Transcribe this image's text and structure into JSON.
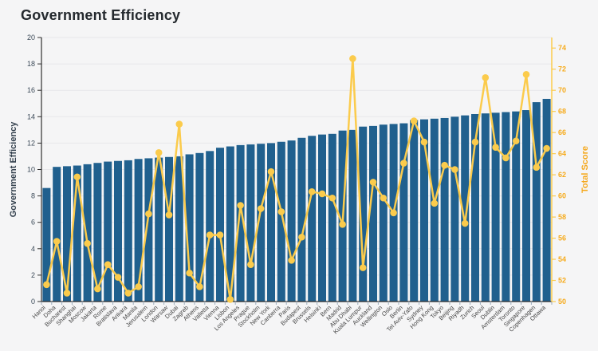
{
  "title": "Government Efficiency",
  "colors": {
    "background": "#f5f5f6",
    "bar": "#20608e",
    "line": "#fbcb4c",
    "marker": "#fbcb4c",
    "right_axis_line": "#fbcb4c",
    "right_axis_text": "#f6ab1c",
    "right_axis_title": "#f5a81c",
    "left_axis_line": "#2e2e2e",
    "left_axis_text": "#3d4b59",
    "left_axis_title": "#33404d",
    "x_tick": "#9cacbc",
    "x_label": "#474747",
    "grid": "#e7e7ea",
    "title_color": "#24292e"
  },
  "chart_data": {
    "type": "bar",
    "title": "Government Efficiency",
    "legend": false,
    "grid": "horizontal",
    "x_label_rotation": 45,
    "categories": [
      "Hanoi",
      "Doha",
      "Bucharest",
      "Shanghai",
      "Moscow",
      "Jakarta",
      "Rome",
      "Bratislava",
      "Ankara",
      "Manila",
      "Jerusalem",
      "London",
      "Warsaw",
      "Dubai",
      "Zagreb",
      "Athens",
      "Valletta",
      "Vienna",
      "Lisbon",
      "Los Angeles",
      "Prague",
      "Stockholm",
      "New York",
      "Canberra",
      "Paris",
      "Budapest",
      "Brussels",
      "Helsinki",
      "Bern",
      "Madrid",
      "Abu Dhabi",
      "Kuala Lumpur",
      "Auckland",
      "Wellington",
      "Oslo",
      "Berlin",
      "Tel Aviv-Yafo",
      "Sydney",
      "Hong Kong",
      "Tokyo",
      "Beijing",
      "Riyadh",
      "Zurich",
      "Seoul",
      "Dublin",
      "Amsterdam",
      "Toronto",
      "Singapore",
      "Copenhagen",
      "Ottawa"
    ],
    "series": [
      {
        "name": "Government Efficiency",
        "type": "bar",
        "yaxis": "left",
        "values": [
          8.6,
          10.2,
          10.25,
          10.3,
          10.4,
          10.5,
          10.6,
          10.65,
          10.7,
          10.8,
          10.85,
          10.9,
          10.95,
          11.0,
          11.15,
          11.25,
          11.4,
          11.65,
          11.75,
          11.85,
          11.9,
          11.95,
          12.0,
          12.1,
          12.2,
          12.4,
          12.55,
          12.65,
          12.7,
          12.95,
          13.0,
          13.25,
          13.3,
          13.4,
          13.45,
          13.5,
          13.75,
          13.8,
          13.85,
          13.9,
          14.0,
          14.1,
          14.2,
          14.25,
          14.3,
          14.35,
          14.4,
          14.5,
          15.1,
          15.35
        ]
      },
      {
        "name": "Total Score",
        "type": "line",
        "yaxis": "right",
        "values": [
          51.6,
          55.7,
          50.8,
          61.8,
          55.5,
          51.2,
          53.5,
          52.3,
          50.8,
          51.4,
          58.3,
          64.1,
          58.2,
          66.8,
          52.7,
          51.4,
          56.3,
          56.3,
          50.2,
          59.1,
          53.5,
          58.8,
          62.3,
          58.5,
          53.9,
          56.1,
          60.4,
          60.2,
          59.8,
          57.3,
          73.0,
          53.2,
          61.3,
          59.8,
          58.4,
          63.1,
          67.1,
          65.1,
          59.3,
          62.9,
          62.5,
          57.4,
          65.1,
          71.2,
          64.6,
          63.6,
          65.2,
          71.5,
          62.7,
          64.5
        ]
      }
    ],
    "left_axis": {
      "title": "Government Efficiency",
      "min": 0,
      "max": 20,
      "tick_step": 2
    },
    "right_axis": {
      "title": "Total Score",
      "min": 50,
      "max": 75,
      "tick_step": 2,
      "last_tick_label": 74
    }
  }
}
